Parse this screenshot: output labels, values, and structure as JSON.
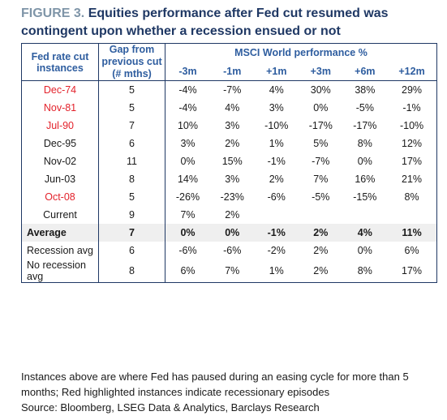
{
  "title": {
    "figure_label": "FIGURE 3.",
    "text": "Equities performance after Fed cut resumed was contingent upon whether a recession ensued or not"
  },
  "table": {
    "headers": {
      "col1": "Fed rate cut instances",
      "col2": "Gap from previous cut (# mths)",
      "group": "MSCI World performance %",
      "periods": [
        "-3m",
        "-1m",
        "+1m",
        "+3m",
        "+6m",
        "+12m"
      ]
    },
    "rows": [
      {
        "label": "Dec-74",
        "recession": true,
        "gap": "5",
        "values": [
          "-4%",
          "-7%",
          "4%",
          "30%",
          "38%",
          "29%"
        ]
      },
      {
        "label": "Nov-81",
        "recession": true,
        "gap": "5",
        "values": [
          "-4%",
          "4%",
          "3%",
          "0%",
          "-5%",
          "-1%"
        ]
      },
      {
        "label": "Jul-90",
        "recession": true,
        "gap": "7",
        "values": [
          "10%",
          "3%",
          "-10%",
          "-17%",
          "-17%",
          "-10%"
        ]
      },
      {
        "label": "Dec-95",
        "recession": false,
        "gap": "6",
        "values": [
          "3%",
          "2%",
          "1%",
          "5%",
          "8%",
          "12%"
        ]
      },
      {
        "label": "Nov-02",
        "recession": false,
        "gap": "11",
        "values": [
          "0%",
          "15%",
          "-1%",
          "-7%",
          "0%",
          "17%"
        ]
      },
      {
        "label": "Jun-03",
        "recession": false,
        "gap": "8",
        "values": [
          "14%",
          "3%",
          "2%",
          "7%",
          "16%",
          "21%"
        ]
      },
      {
        "label": "Oct-08",
        "recession": true,
        "gap": "5",
        "values": [
          "-26%",
          "-23%",
          "-6%",
          "-5%",
          "-15%",
          "8%"
        ]
      },
      {
        "label": "Current",
        "recession": false,
        "gap": "9",
        "values": [
          "7%",
          "2%",
          "",
          "",
          "",
          ""
        ]
      }
    ],
    "summary": [
      {
        "label": "Average",
        "gap": "7",
        "values": [
          "0%",
          "0%",
          "-1%",
          "2%",
          "4%",
          "11%"
        ],
        "highlight": true
      },
      {
        "label": "Recession avg",
        "gap": "6",
        "values": [
          "-6%",
          "-6%",
          "-2%",
          "2%",
          "0%",
          "6%"
        ],
        "highlight": false
      },
      {
        "label": "No recession avg",
        "gap": "8",
        "values": [
          "6%",
          "7%",
          "1%",
          "2%",
          "8%",
          "17%"
        ],
        "highlight": false
      }
    ]
  },
  "footer": {
    "note": "Instances above are where Fed has paused during an easing cycle for more than 5 months; Red highlighted instances indicate recessionary episodes",
    "source": "Source: Bloomberg, LSEG Data & Analytics, Barclays Research"
  },
  "colors": {
    "title": "#1f3864",
    "figure_label": "#7f95a8",
    "header": "#2e5d9f",
    "recession_red": "#e3222b",
    "average_bg": "#efefef"
  }
}
